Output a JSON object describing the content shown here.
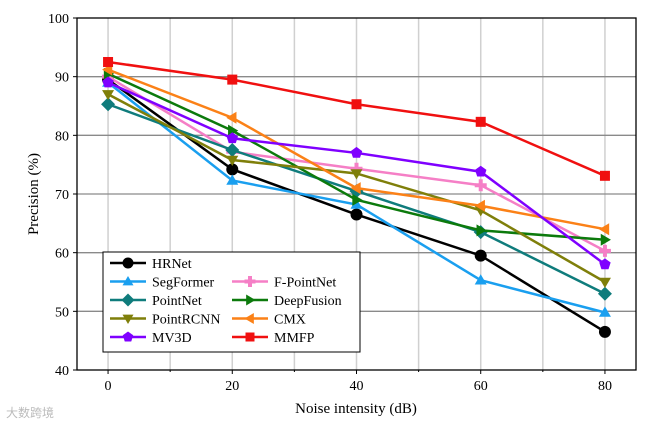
{
  "chart_data": {
    "type": "line",
    "title": "",
    "xlabel": "Noise intensity (dB)",
    "ylabel": "Precision (%)",
    "xlim": [
      -5,
      85
    ],
    "ylim": [
      40,
      100
    ],
    "x": [
      0,
      20,
      40,
      60,
      80
    ],
    "xticks": [
      "0",
      "20",
      "40",
      "60",
      "80"
    ],
    "yticks": [
      "40",
      "50",
      "60",
      "70",
      "80",
      "90",
      "100"
    ],
    "grid": true,
    "legend_placement": "bottom-left",
    "series": [
      {
        "name": "HRNet",
        "color": "#000000",
        "marker": "circle",
        "values": [
          89.5,
          74.2,
          66.5,
          59.5,
          46.5
        ]
      },
      {
        "name": "SegFormer",
        "color": "#1a9fef",
        "marker": "triangle-up",
        "values": [
          89.0,
          72.3,
          68.2,
          55.3,
          49.8
        ]
      },
      {
        "name": "F-PointNet",
        "color": "#f57fc6",
        "marker": "plus",
        "values": [
          90.0,
          77.2,
          74.3,
          71.5,
          60.3
        ]
      },
      {
        "name": "PointNet",
        "color": "#0f7c7c",
        "marker": "diamond",
        "values": [
          85.3,
          77.5,
          70.5,
          63.5,
          53.0
        ]
      },
      {
        "name": "DeepFusion",
        "color": "#0c7a0c",
        "marker": "triangle-right",
        "values": [
          90.5,
          80.8,
          69.0,
          63.8,
          62.2
        ]
      },
      {
        "name": "PointRCNN",
        "color": "#7f7f0a",
        "marker": "triangle-down",
        "values": [
          87.0,
          75.8,
          73.5,
          67.2,
          55.0
        ]
      },
      {
        "name": "CMX",
        "color": "#fb8117",
        "marker": "triangle-left",
        "values": [
          91.2,
          83.0,
          71.0,
          68.0,
          64.0
        ]
      },
      {
        "name": "MV3D",
        "color": "#7f00ff",
        "marker": "pentagon",
        "values": [
          89.0,
          79.5,
          77.0,
          73.8,
          58.0
        ]
      },
      {
        "name": "MMFP",
        "color": "#f01010",
        "marker": "square",
        "values": [
          92.5,
          89.5,
          85.3,
          82.3,
          73.1
        ]
      }
    ]
  },
  "watermark": "大数跨境"
}
